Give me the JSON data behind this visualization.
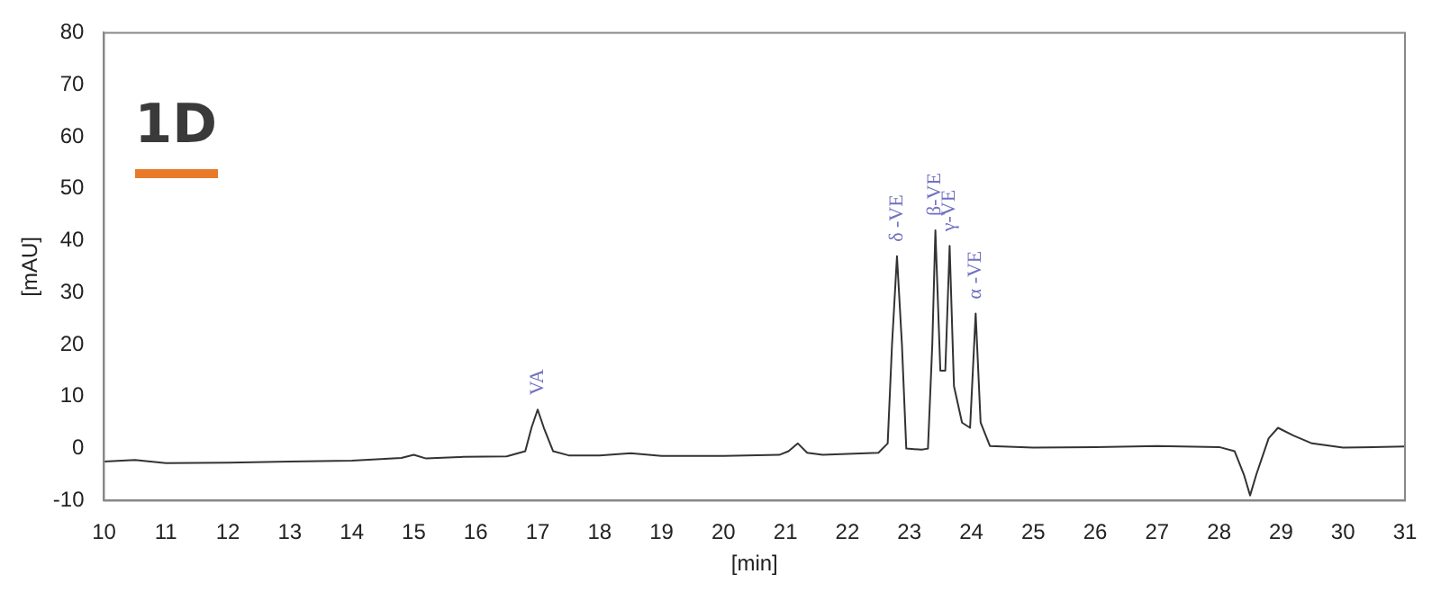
{
  "chart_data": {
    "type": "line",
    "xlabel": "[min]",
    "ylabel": "[mAU]",
    "series": [
      {
        "color": "#333333",
        "x": [
          10,
          10.5,
          11,
          12,
          13,
          14,
          14.8,
          15,
          15.2,
          15.8,
          16.5,
          16.8,
          16.9,
          17,
          17.1,
          17.25,
          17.5,
          18,
          18.5,
          19,
          20,
          20.9,
          21.05,
          21.2,
          21.35,
          21.6,
          22,
          22.5,
          22.65,
          22.72,
          22.8,
          22.88,
          22.95,
          23.2,
          23.3,
          23.37,
          23.42,
          23.5,
          23.58,
          23.65,
          23.72,
          23.85,
          23.98,
          24.07,
          24.15,
          24.3,
          25,
          26,
          27,
          28,
          28.25,
          28.4,
          28.5,
          28.6,
          28.8,
          28.95,
          29.2,
          29.5,
          30,
          31
        ],
        "values": [
          -2.5,
          -2.2,
          -2.8,
          -2.7,
          -2.5,
          -2.3,
          -1.8,
          -1.2,
          -1.9,
          -1.6,
          -1.5,
          -0.5,
          4,
          7.5,
          4,
          -0.5,
          -1.3,
          -1.3,
          -0.9,
          -1.4,
          -1.4,
          -1.2,
          -0.5,
          1,
          -0.8,
          -1.2,
          -1,
          -0.8,
          1,
          20,
          37,
          20,
          0,
          -0.2,
          0,
          20,
          42,
          15,
          15,
          39,
          12,
          5,
          4,
          26,
          5,
          0.5,
          0.2,
          0.3,
          0.5,
          0.3,
          -0.5,
          -5,
          -9,
          -5,
          2,
          4,
          2.5,
          1,
          0.2,
          0.4
        ]
      }
    ],
    "xlim": [
      10,
      31
    ],
    "xticks": [
      10,
      11,
      12,
      13,
      14,
      15,
      16,
      17,
      18,
      19,
      20,
      21,
      22,
      23,
      24,
      25,
      26,
      27,
      28,
      29,
      30,
      31
    ],
    "ylim": [
      -10,
      80
    ],
    "yticks": [
      -10,
      0,
      10,
      20,
      30,
      40,
      50,
      60,
      70,
      80
    ],
    "grid": false,
    "legend": false,
    "marker": "none",
    "line_style": "solid",
    "annotations": [
      "1D",
      {
        "text": "VA",
        "x": 17,
        "y": 7.5
      },
      {
        "text": "δ -VE",
        "x": 22.8,
        "y": 37
      },
      {
        "text": "β-VE",
        "x": 23.42,
        "y": 42
      },
      {
        "text": "γ-VE",
        "x": 23.65,
        "y": 39
      },
      {
        "text": "α -VE",
        "x": 24.07,
        "y": 26
      }
    ]
  }
}
